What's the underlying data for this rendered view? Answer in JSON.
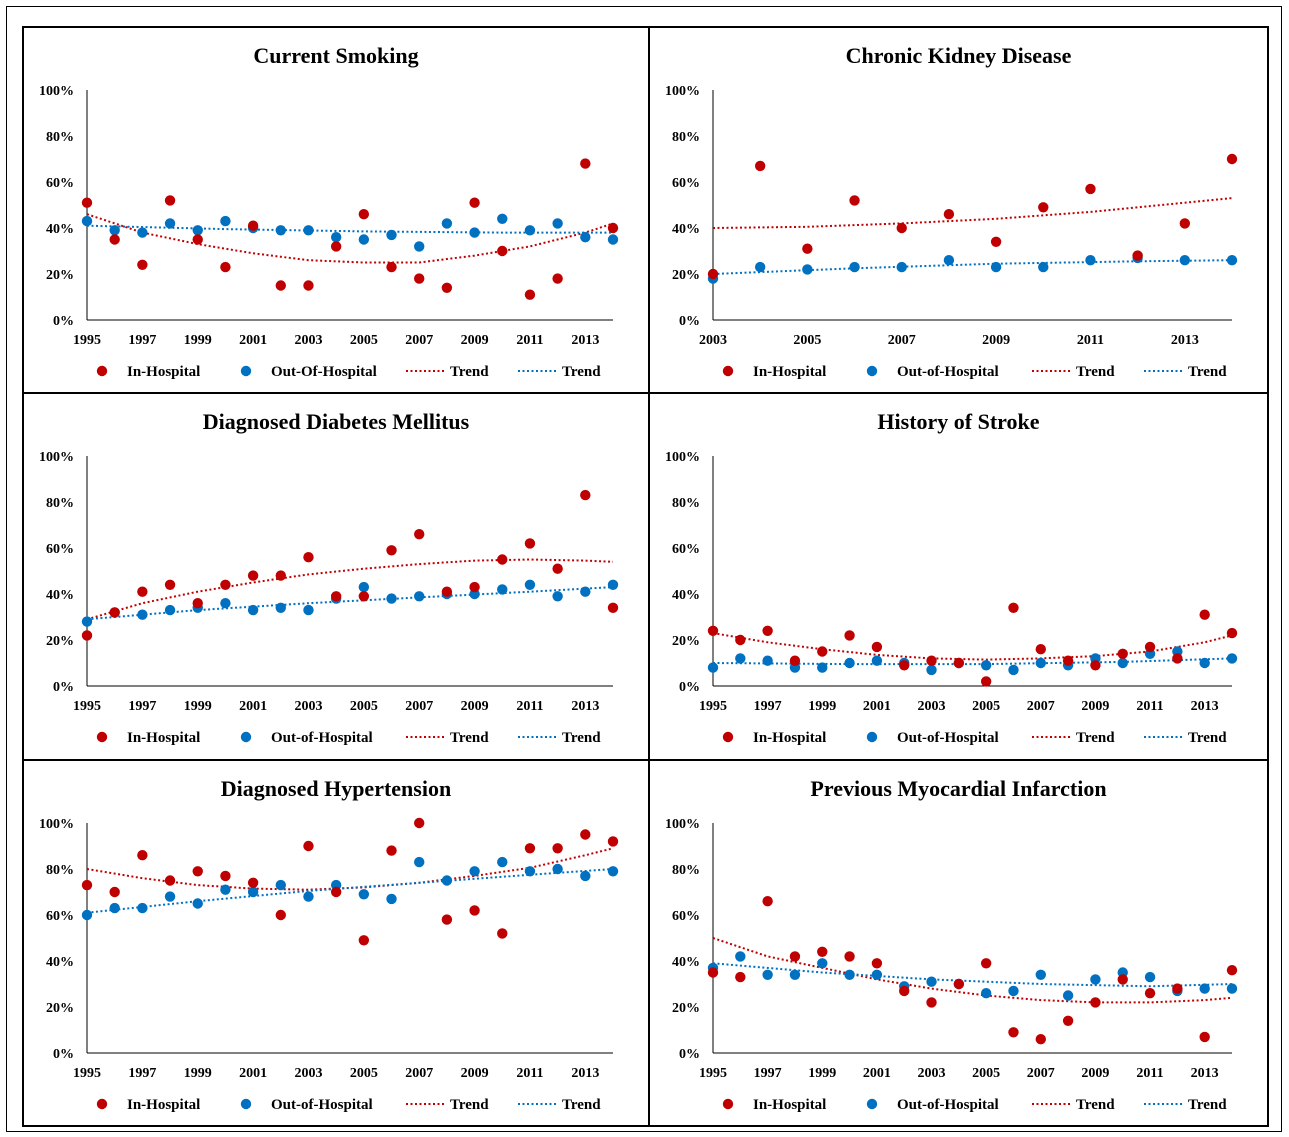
{
  "colors": {
    "in_hospital": "#c00000",
    "out_of_hospital": "#0070c0",
    "axis": "#000000",
    "text": "#000000"
  },
  "chart_data": [
    {
      "type": "scatter",
      "title": "Current Smoking",
      "xlim": [
        1995,
        2014
      ],
      "ylim": [
        0,
        100
      ],
      "x_ticks": [
        "1995",
        "1997",
        "1999",
        "2001",
        "2003",
        "2005",
        "2007",
        "2009",
        "2011",
        "2013"
      ],
      "y_ticks": [
        "0%",
        "20%",
        "40%",
        "60%",
        "80%",
        "100%"
      ],
      "legend": [
        "In-Hospital",
        "Out-Of-Hospital",
        "Trend",
        "Trend"
      ],
      "legend_position": "bottom",
      "series": [
        {
          "name": "In-Hospital",
          "x": [
            1995,
            1996,
            1997,
            1998,
            1999,
            2000,
            2001,
            2002,
            2003,
            2004,
            2005,
            2006,
            2007,
            2008,
            2009,
            2010,
            2011,
            2012,
            2013,
            2014
          ],
          "y": [
            51,
            35,
            24,
            52,
            35,
            23,
            41,
            15,
            15,
            32,
            46,
            23,
            18,
            14,
            51,
            30,
            11,
            18,
            68,
            40
          ]
        },
        {
          "name": "Out-Of-Hospital",
          "x": [
            1995,
            1996,
            1997,
            1998,
            1999,
            2000,
            2001,
            2002,
            2003,
            2004,
            2005,
            2006,
            2007,
            2008,
            2009,
            2010,
            2011,
            2012,
            2013,
            2014
          ],
          "y": [
            43,
            39,
            38,
            42,
            39,
            43,
            40,
            39,
            39,
            36,
            35,
            37,
            32,
            42,
            38,
            44,
            39,
            42,
            36,
            35
          ]
        }
      ],
      "trends": [
        {
          "name": "Trend",
          "x": [
            1995,
            1997,
            1999,
            2001,
            2003,
            2005,
            2007,
            2009,
            2011,
            2013,
            2014
          ],
          "y": [
            46,
            38,
            33,
            29,
            26,
            25,
            25,
            28,
            32,
            38,
            42
          ]
        },
        {
          "name": "Trend",
          "x": [
            1995,
            2000,
            2005,
            2010,
            2014
          ],
          "y": [
            41,
            39.5,
            38.5,
            38,
            38
          ]
        }
      ]
    },
    {
      "type": "scatter",
      "title": "Chronic Kidney Disease",
      "xlim": [
        2003,
        2014
      ],
      "ylim": [
        0,
        100
      ],
      "x_ticks": [
        "2003",
        "2005",
        "2007",
        "2009",
        "2011",
        "2013"
      ],
      "y_ticks": [
        "0%",
        "20%",
        "40%",
        "60%",
        "80%",
        "100%"
      ],
      "legend": [
        "In-Hospital",
        "Out-of-Hospital",
        "Trend",
        "Trend"
      ],
      "legend_position": "bottom",
      "series": [
        {
          "name": "In-Hospital",
          "x": [
            2003,
            2004,
            2005,
            2006,
            2007,
            2008,
            2009,
            2010,
            2011,
            2012,
            2013,
            2014
          ],
          "y": [
            20,
            67,
            31,
            52,
            40,
            46,
            34,
            49,
            57,
            28,
            42,
            70
          ]
        },
        {
          "name": "Out-of-Hospital",
          "x": [
            2003,
            2004,
            2005,
            2006,
            2007,
            2008,
            2009,
            2010,
            2011,
            2012,
            2013,
            2014
          ],
          "y": [
            18,
            23,
            22,
            23,
            23,
            26,
            23,
            23,
            26,
            27,
            26,
            26
          ]
        }
      ],
      "trends": [
        {
          "name": "Trend",
          "x": [
            2003,
            2005,
            2007,
            2009,
            2011,
            2013,
            2014
          ],
          "y": [
            40,
            40.5,
            42,
            44,
            47,
            51,
            53
          ]
        },
        {
          "name": "Trend",
          "x": [
            2003,
            2006,
            2009,
            2012,
            2014
          ],
          "y": [
            20,
            22.5,
            24.5,
            25.5,
            26
          ]
        }
      ]
    },
    {
      "type": "scatter",
      "title": "Diagnosed Diabetes Mellitus",
      "xlim": [
        1995,
        2014
      ],
      "ylim": [
        0,
        100
      ],
      "x_ticks": [
        "1995",
        "1997",
        "1999",
        "2001",
        "2003",
        "2005",
        "2007",
        "2009",
        "2011",
        "2013"
      ],
      "y_ticks": [
        "0%",
        "20%",
        "40%",
        "60%",
        "80%",
        "100%"
      ],
      "legend": [
        "In-Hospital",
        "Out-of-Hospital",
        "Trend",
        "Trend"
      ],
      "legend_position": "bottom",
      "series": [
        {
          "name": "In-Hospital",
          "x": [
            1995,
            1996,
            1997,
            1998,
            1999,
            2000,
            2001,
            2002,
            2003,
            2004,
            2005,
            2006,
            2007,
            2008,
            2009,
            2010,
            2011,
            2012,
            2013,
            2014
          ],
          "y": [
            22,
            32,
            41,
            44,
            36,
            44,
            48,
            48,
            56,
            39,
            39,
            59,
            66,
            41,
            43,
            55,
            62,
            51,
            83,
            34
          ]
        },
        {
          "name": "Out-of-Hospital",
          "x": [
            1995,
            1996,
            1997,
            1998,
            1999,
            2000,
            2001,
            2002,
            2003,
            2004,
            2005,
            2006,
            2007,
            2008,
            2009,
            2010,
            2011,
            2012,
            2013,
            2014
          ],
          "y": [
            28,
            32,
            31,
            33,
            34,
            36,
            33,
            34,
            33,
            38,
            43,
            38,
            39,
            40,
            40,
            42,
            44,
            39,
            41,
            44
          ]
        }
      ],
      "trends": [
        {
          "name": "Trend",
          "x": [
            1995,
            1997,
            1999,
            2001,
            2003,
            2005,
            2007,
            2009,
            2011,
            2013,
            2014
          ],
          "y": [
            29,
            36,
            41,
            45,
            48.5,
            51,
            53,
            54.5,
            55,
            54.5,
            54
          ]
        },
        {
          "name": "Trend",
          "x": [
            1995,
            1999,
            2003,
            2007,
            2011,
            2014
          ],
          "y": [
            29,
            33,
            36,
            38.5,
            41,
            43
          ]
        }
      ]
    },
    {
      "type": "scatter",
      "title": "History of Stroke",
      "xlim": [
        1995,
        2014
      ],
      "ylim": [
        0,
        100
      ],
      "x_ticks": [
        "1995",
        "1997",
        "1999",
        "2001",
        "2003",
        "2005",
        "2007",
        "2009",
        "2011",
        "2013"
      ],
      "y_ticks": [
        "0%",
        "20%",
        "40%",
        "60%",
        "80%",
        "100%"
      ],
      "legend": [
        "In-Hospital",
        "Out-of-Hospital",
        "Trend",
        "Trend"
      ],
      "legend_position": "bottom",
      "series": [
        {
          "name": "In-Hospital",
          "x": [
            1995,
            1996,
            1997,
            1998,
            1999,
            2000,
            2001,
            2002,
            2003,
            2004,
            2005,
            2006,
            2007,
            2008,
            2009,
            2010,
            2011,
            2012,
            2013,
            2014
          ],
          "y": [
            24,
            20,
            24,
            11,
            15,
            22,
            17,
            9,
            11,
            10,
            2,
            34,
            16,
            11,
            9,
            14,
            17,
            12,
            31,
            23
          ]
        },
        {
          "name": "Out-of-Hospital",
          "x": [
            1995,
            1996,
            1997,
            1998,
            1999,
            2000,
            2001,
            2002,
            2003,
            2004,
            2005,
            2006,
            2007,
            2008,
            2009,
            2010,
            2011,
            2012,
            2013,
            2014
          ],
          "y": [
            8,
            12,
            11,
            8,
            8,
            10,
            11,
            10,
            7,
            10,
            9,
            7,
            10,
            9,
            12,
            10,
            14,
            15,
            10,
            12
          ]
        }
      ],
      "trends": [
        {
          "name": "Trend",
          "x": [
            1995,
            1997,
            1999,
            2001,
            2003,
            2005,
            2007,
            2009,
            2011,
            2013,
            2014
          ],
          "y": [
            23,
            19,
            16,
            13.5,
            12,
            11.5,
            12,
            13,
            15,
            19,
            22
          ]
        },
        {
          "name": "Trend",
          "x": [
            1995,
            2000,
            2005,
            2010,
            2014
          ],
          "y": [
            10,
            9.5,
            9.5,
            10.5,
            12
          ]
        }
      ]
    },
    {
      "type": "scatter",
      "title": "Diagnosed Hypertension",
      "xlim": [
        1995,
        2014
      ],
      "ylim": [
        0,
        100
      ],
      "x_ticks": [
        "1995",
        "1997",
        "1999",
        "2001",
        "2003",
        "2005",
        "2007",
        "2009",
        "2011",
        "2013"
      ],
      "y_ticks": [
        "0%",
        "20%",
        "40%",
        "60%",
        "80%",
        "100%"
      ],
      "legend": [
        "In-Hospital",
        "Out-of-Hospital",
        "Trend",
        "Trend"
      ],
      "legend_position": "bottom",
      "series": [
        {
          "name": "In-Hospital",
          "x": [
            1995,
            1996,
            1997,
            1998,
            1999,
            2000,
            2001,
            2002,
            2003,
            2004,
            2005,
            2006,
            2007,
            2008,
            2009,
            2010,
            2011,
            2012,
            2013,
            2014
          ],
          "y": [
            73,
            70,
            86,
            75,
            79,
            77,
            74,
            60,
            90,
            70,
            49,
            88,
            100,
            58,
            62,
            52,
            89,
            89,
            95,
            92
          ]
        },
        {
          "name": "Out-of-Hospital",
          "x": [
            1995,
            1996,
            1997,
            1998,
            1999,
            2000,
            2001,
            2002,
            2003,
            2004,
            2005,
            2006,
            2007,
            2008,
            2009,
            2010,
            2011,
            2012,
            2013,
            2014
          ],
          "y": [
            60,
            63,
            63,
            68,
            65,
            71,
            70,
            73,
            68,
            73,
            69,
            67,
            83,
            75,
            79,
            83,
            79,
            80,
            77,
            79
          ]
        }
      ],
      "trends": [
        {
          "name": "Trend",
          "x": [
            1995,
            1997,
            1999,
            2001,
            2003,
            2005,
            2007,
            2009,
            2011,
            2013,
            2014
          ],
          "y": [
            80,
            76,
            73,
            71.5,
            71,
            72,
            74,
            77,
            80.5,
            86,
            89
          ]
        },
        {
          "name": "Trend",
          "x": [
            1995,
            1999,
            2003,
            2007,
            2011,
            2014
          ],
          "y": [
            61,
            66,
            70.5,
            74,
            77.5,
            80
          ]
        }
      ]
    },
    {
      "type": "scatter",
      "title": "Previous Myocardial Infarction",
      "xlim": [
        1995,
        2014
      ],
      "ylim": [
        0,
        100
      ],
      "x_ticks": [
        "1995",
        "1997",
        "1999",
        "2001",
        "2003",
        "2005",
        "2007",
        "2009",
        "2011",
        "2013"
      ],
      "y_ticks": [
        "0%",
        "20%",
        "40%",
        "60%",
        "80%",
        "100%"
      ],
      "legend": [
        "In-Hospital",
        "Out-of-Hospital",
        "Trend",
        "Trend"
      ],
      "legend_position": "bottom",
      "series": [
        {
          "name": "In-Hospital",
          "x": [
            1995,
            1996,
            1997,
            1998,
            1999,
            2000,
            2001,
            2002,
            2003,
            2004,
            2005,
            2006,
            2007,
            2008,
            2009,
            2010,
            2011,
            2012,
            2013,
            2014
          ],
          "y": [
            35,
            33,
            66,
            42,
            44,
            42,
            39,
            27,
            22,
            30,
            39,
            9,
            6,
            14,
            22,
            32,
            26,
            28,
            7,
            36
          ]
        },
        {
          "name": "Out-of-Hospital",
          "x": [
            1995,
            1996,
            1997,
            1998,
            1999,
            2000,
            2001,
            2002,
            2003,
            2004,
            2005,
            2006,
            2007,
            2008,
            2009,
            2010,
            2011,
            2012,
            2013,
            2014
          ],
          "y": [
            37,
            42,
            34,
            34,
            39,
            34,
            34,
            29,
            31,
            30,
            26,
            27,
            34,
            25,
            32,
            35,
            33,
            27,
            28,
            28
          ]
        }
      ],
      "trends": [
        {
          "name": "Trend",
          "x": [
            1995,
            1997,
            1999,
            2001,
            2003,
            2005,
            2007,
            2009,
            2011,
            2013,
            2014
          ],
          "y": [
            50,
            42,
            37,
            32,
            28,
            25,
            23,
            22,
            22,
            23,
            24
          ]
        },
        {
          "name": "Trend",
          "x": [
            1995,
            1999,
            2003,
            2007,
            2011,
            2014
          ],
          "y": [
            39,
            35,
            32,
            30,
            29,
            30
          ]
        }
      ]
    }
  ]
}
